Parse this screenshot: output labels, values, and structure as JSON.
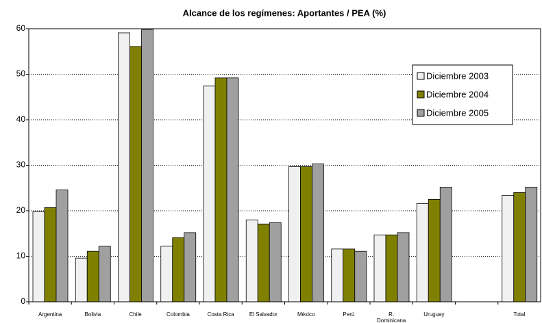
{
  "chart_data": {
    "type": "bar",
    "title": "Alcance de los regímenes: Aportantes / PEA  (%)",
    "categories": [
      "Argentina",
      "Bolivia",
      "Chile",
      "Colombia",
      "Costa Rica",
      "El Salvador",
      "México",
      "Perú",
      "R. Dominicana",
      "Uruguay",
      null,
      "Total"
    ],
    "series": [
      {
        "name": "Diciembre 2003",
        "color": "#f0f0f0",
        "values": [
          19.8,
          9.6,
          59.1,
          12.2,
          47.4,
          18.0,
          29.7,
          11.6,
          14.7,
          21.6,
          null,
          23.4
        ]
      },
      {
        "name": "Diciembre 2004",
        "color": "#808000",
        "values": [
          20.7,
          11.1,
          56.1,
          14.1,
          49.2,
          17.1,
          29.7,
          11.6,
          14.7,
          22.5,
          null,
          24.0
        ]
      },
      {
        "name": "Diciembre 2005",
        "color": "#a0a0a0",
        "values": [
          24.6,
          12.2,
          59.8,
          15.2,
          49.2,
          17.4,
          30.3,
          11.1,
          15.2,
          25.2,
          null,
          25.2
        ]
      }
    ],
    "ylim": [
      0,
      60
    ],
    "yticks": [
      0,
      10,
      20,
      30,
      40,
      50,
      60
    ],
    "grid": true,
    "legend": "upper right"
  }
}
